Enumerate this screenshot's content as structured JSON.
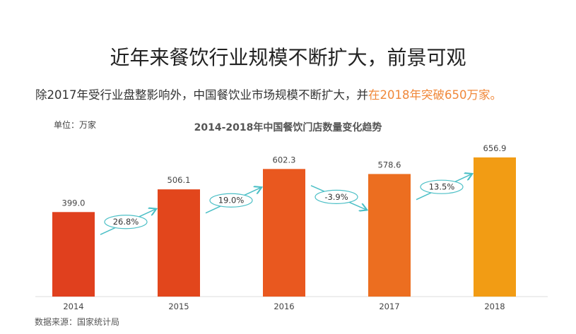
{
  "header": {
    "title": "近年来餐饮行业规模不断扩大，前景可观",
    "subtitle_plain": "除2017年受行业盘整影响外，中国餐饮业市场规模不断扩大，并",
    "subtitle_highlight": "在2018年突破650万家。",
    "highlight_color": "#f0883a"
  },
  "unit_label": "单位：万家",
  "source": "数据来源：国家统计局",
  "chart_data": {
    "type": "bar",
    "title": "2014-2018年中国餐饮门店数量变化趋势",
    "categories": [
      "2014",
      "2015",
      "2016",
      "2017",
      "2018"
    ],
    "values": [
      399.0,
      506.1,
      602.3,
      578.6,
      656.9
    ],
    "value_labels": [
      "399.0",
      "506.1",
      "602.3",
      "578.6",
      "656.9"
    ],
    "growth_rates": [
      "26.8%",
      "19.0%",
      "-3.9%",
      "13.5%"
    ],
    "ylim": [
      0,
      700
    ],
    "grid": false,
    "bar_colors": [
      "#e0401e",
      "#e2461c",
      "#e9581f",
      "#ec6e20",
      "#f29c14"
    ],
    "annotation_color": "#4bbfc6"
  }
}
